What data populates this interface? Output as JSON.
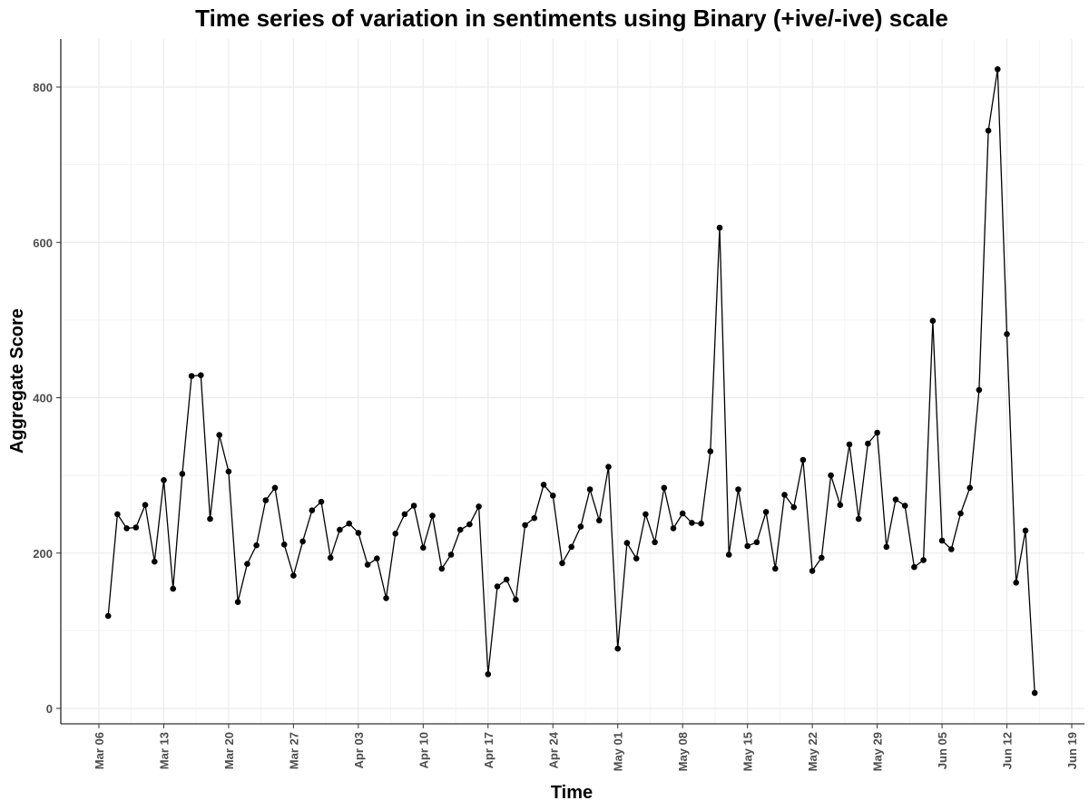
{
  "chart_data": {
    "type": "line",
    "title": "Time series of variation in sentiments using Binary (+ive/-ive) scale",
    "xlabel": "Time",
    "ylabel": "Aggregate Score",
    "ylim": [
      0,
      850
    ],
    "y_ticks": [
      0,
      200,
      400,
      600,
      800
    ],
    "x_tick_labels": [
      "Mar 06",
      "Mar 13",
      "Mar 20",
      "Mar 27",
      "Apr 03",
      "Apr 10",
      "Apr 17",
      "Apr 24",
      "May 01",
      "May 08",
      "May 15",
      "May 22",
      "May 29",
      "Jun 05",
      "Jun 12",
      "Jun 19"
    ],
    "grid": true,
    "series": [
      {
        "color": "#000000",
        "start_date": "Mar 07",
        "values": [
          119,
          250,
          232,
          233,
          262,
          189,
          294,
          154,
          302,
          428,
          429,
          244,
          352,
          305,
          137,
          186,
          210,
          268,
          284,
          211,
          171,
          215,
          255,
          266,
          194,
          230,
          238,
          226,
          185,
          193,
          142,
          225,
          250,
          261,
          207,
          248,
          180,
          198,
          230,
          237,
          260,
          44,
          157,
          166,
          140,
          236,
          245,
          288,
          274,
          187,
          208,
          234,
          282,
          242,
          311,
          77,
          213,
          193,
          250,
          214,
          284,
          232,
          251,
          239,
          238,
          331,
          619,
          198,
          282,
          209,
          214,
          253,
          180,
          275,
          259,
          320,
          177,
          194,
          300,
          262,
          340,
          244,
          341,
          355,
          208,
          269,
          261,
          182,
          191,
          499,
          216,
          205,
          251,
          284,
          410,
          744,
          823,
          482,
          162,
          229,
          20
        ]
      }
    ]
  }
}
